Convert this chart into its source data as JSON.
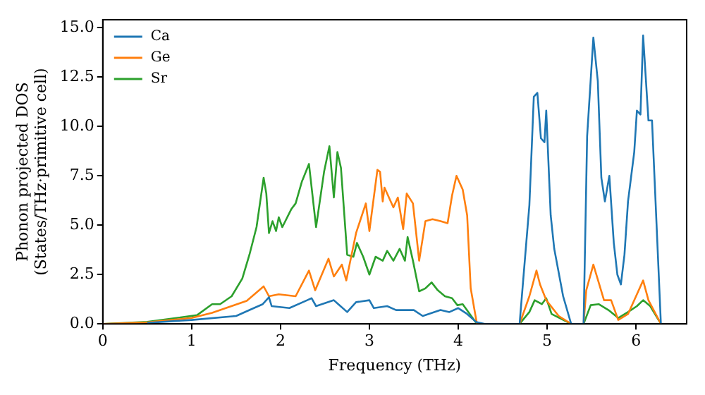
{
  "chart_data": {
    "type": "line",
    "xlabel": "Frequency (THz)",
    "ylabel": "Phonon projected DOS\n(States/THz·primitive cell)",
    "xlim": [
      0,
      6.57
    ],
    "xticks": [
      0,
      1,
      2,
      3,
      4,
      5,
      6
    ],
    "ylim": [
      0,
      15.4
    ],
    "yticks": [
      {
        "value": 0,
        "label": "0.0"
      },
      2.5,
      {
        "value": 5,
        "label": "5.0"
      },
      7.5,
      {
        "value": 10,
        "label": "10.0"
      },
      12.5,
      {
        "value": 15,
        "label": "15.0"
      }
    ],
    "grid": false,
    "legend": "top left",
    "marker": "none",
    "line_style": "solid",
    "series": [
      {
        "name": "Ca",
        "color": "#1f77b4",
        "x": [
          0.5,
          1,
          1.5,
          1.7,
          1.8,
          1.87,
          1.9,
          2.1,
          2.3,
          2.35,
          2.4,
          2.6,
          2.65,
          2.75,
          2.85,
          3.0,
          3.05,
          3.2,
          3.3,
          3.5,
          3.6,
          3.8,
          3.9,
          4.0,
          4.1,
          4.2,
          4.3,
          4.69,
          4.8,
          4.85,
          4.89,
          4.93,
          4.97,
          4.99,
          5.04,
          5.08,
          5.18,
          5.27,
          5.41,
          5.45,
          5.52,
          5.57,
          5.61,
          5.65,
          5.7,
          5.75,
          5.79,
          5.83,
          5.87,
          5.91,
          5.98,
          6.01,
          6.05,
          6.08,
          6.14,
          6.18,
          6.28
        ],
        "values": [
          0.05,
          0.2,
          0.4,
          0.8,
          1.0,
          1.35,
          0.9,
          0.8,
          1.2,
          1.3,
          0.9,
          1.2,
          1.0,
          0.6,
          1.1,
          1.2,
          0.8,
          0.9,
          0.7,
          0.7,
          0.4,
          0.7,
          0.6,
          0.8,
          0.5,
          0.1,
          0,
          0,
          6.0,
          11.5,
          11.7,
          9.4,
          9.2,
          10.8,
          5.5,
          3.8,
          1.4,
          0,
          0,
          9.5,
          14.5,
          12.3,
          7.4,
          6.2,
          7.5,
          4.1,
          2.5,
          2.0,
          3.5,
          6.2,
          8.7,
          10.8,
          10.6,
          14.6,
          10.3,
          10.3,
          0
        ]
      },
      {
        "name": "Ge",
        "color": "#ff7f0e",
        "x": [
          0,
          0.5,
          1,
          1.23,
          1.62,
          1.81,
          1.87,
          1.98,
          2.17,
          2.32,
          2.39,
          2.54,
          2.6,
          2.69,
          2.74,
          2.85,
          2.96,
          3.0,
          3.09,
          3.12,
          3.15,
          3.17,
          3.27,
          3.32,
          3.38,
          3.42,
          3.49,
          3.56,
          3.63,
          3.71,
          3.8,
          3.88,
          3.93,
          3.98,
          4.05,
          4.1,
          4.14,
          4.21,
          4.69,
          4.8,
          4.88,
          4.92,
          4.99,
          5.13,
          5.27,
          5.41,
          5.44,
          5.52,
          5.58,
          5.64,
          5.72,
          5.8,
          5.91,
          6.01,
          6.08,
          6.14,
          6.28
        ],
        "values": [
          0,
          0.08,
          0.3,
          0.56,
          1.17,
          1.9,
          1.4,
          1.5,
          1.4,
          2.7,
          1.7,
          3.3,
          2.4,
          3.0,
          2.2,
          4.6,
          6.1,
          4.7,
          7.8,
          7.7,
          6.2,
          6.9,
          5.9,
          6.4,
          4.8,
          6.6,
          6.1,
          3.2,
          5.2,
          5.3,
          5.2,
          5.1,
          6.5,
          7.5,
          6.8,
          5.5,
          1.8,
          0,
          0,
          1.4,
          2.7,
          2.0,
          1.2,
          0.4,
          0,
          0,
          1.7,
          3.0,
          2.1,
          1.2,
          1.2,
          0.2,
          0.5,
          1.5,
          2.2,
          1.2,
          0
        ]
      },
      {
        "name": "Sr",
        "color": "#2ca02c",
        "x": [
          0,
          0.5,
          1.06,
          1.23,
          1.32,
          1.45,
          1.57,
          1.65,
          1.73,
          1.81,
          1.84,
          1.87,
          1.91,
          1.95,
          1.98,
          2.02,
          2.12,
          2.17,
          2.24,
          2.32,
          2.4,
          2.49,
          2.55,
          2.6,
          2.64,
          2.68,
          2.75,
          2.82,
          2.86,
          2.93,
          3.0,
          3.07,
          3.15,
          3.2,
          3.27,
          3.34,
          3.4,
          3.43,
          3.49,
          3.56,
          3.63,
          3.7,
          3.77,
          3.85,
          3.93,
          3.99,
          4.05,
          4.13,
          4.21,
          4.69,
          4.8,
          4.86,
          4.94,
          4.99,
          5.05,
          5.27,
          5.41,
          5.49,
          5.58,
          5.69,
          5.8,
          5.91,
          6.01,
          6.08,
          6.16,
          6.28
        ],
        "values": [
          0,
          0.1,
          0.44,
          1.0,
          1.0,
          1.4,
          2.3,
          3.5,
          4.9,
          7.4,
          6.6,
          4.6,
          5.2,
          4.7,
          5.4,
          4.9,
          5.8,
          6.1,
          7.2,
          8.1,
          4.9,
          7.7,
          9.0,
          6.4,
          8.7,
          7.9,
          3.5,
          3.4,
          4.1,
          3.4,
          2.5,
          3.4,
          3.2,
          3.7,
          3.2,
          3.8,
          3.2,
          4.4,
          3.2,
          1.65,
          1.8,
          2.1,
          1.7,
          1.4,
          1.3,
          0.95,
          1.0,
          0.5,
          0,
          0,
          0.6,
          1.2,
          1.0,
          1.3,
          0.5,
          0,
          0,
          0.95,
          1.0,
          0.7,
          0.3,
          0.6,
          0.9,
          1.2,
          0.9,
          0
        ]
      }
    ]
  }
}
